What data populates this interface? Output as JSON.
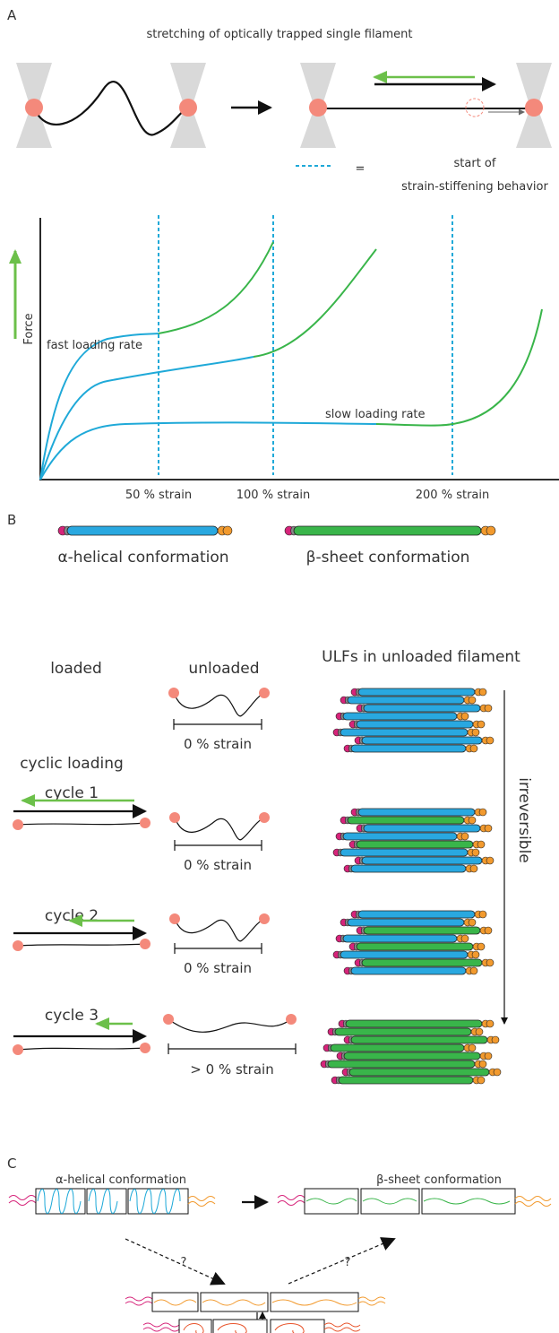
{
  "panel_a": {
    "label": "A",
    "title": "stretching of optically trapped single filament",
    "legend_equals": "=",
    "legend_text_1": "start of",
    "legend_text_2": "strain-stiffening behavior",
    "y_axis_label": "Force",
    "curve_labels": [
      "fast loading rate",
      "slow loading rate"
    ],
    "x_labels": [
      "50 % strain",
      "100 % strain",
      "200 % strain"
    ]
  },
  "panel_b": {
    "label": "B",
    "conformations": [
      "α-helical conformation",
      "β-sheet conformation"
    ],
    "col_headers": [
      "loaded",
      "unloaded",
      "ULFs in unloaded filament"
    ],
    "cyclic_loading": "cyclic loading",
    "cycles": [
      "cycle 1",
      "cycle 2",
      "cycle 3"
    ],
    "strain_labels": [
      "0 % strain",
      "0 % strain",
      "0 % strain",
      "> 0 % strain"
    ],
    "irreversible": "irreversible"
  },
  "panel_c": {
    "label": "C",
    "conformations": [
      "α-helical conformation",
      "β-sheet conformation"
    ],
    "questions": [
      "?",
      "?"
    ]
  }
}
